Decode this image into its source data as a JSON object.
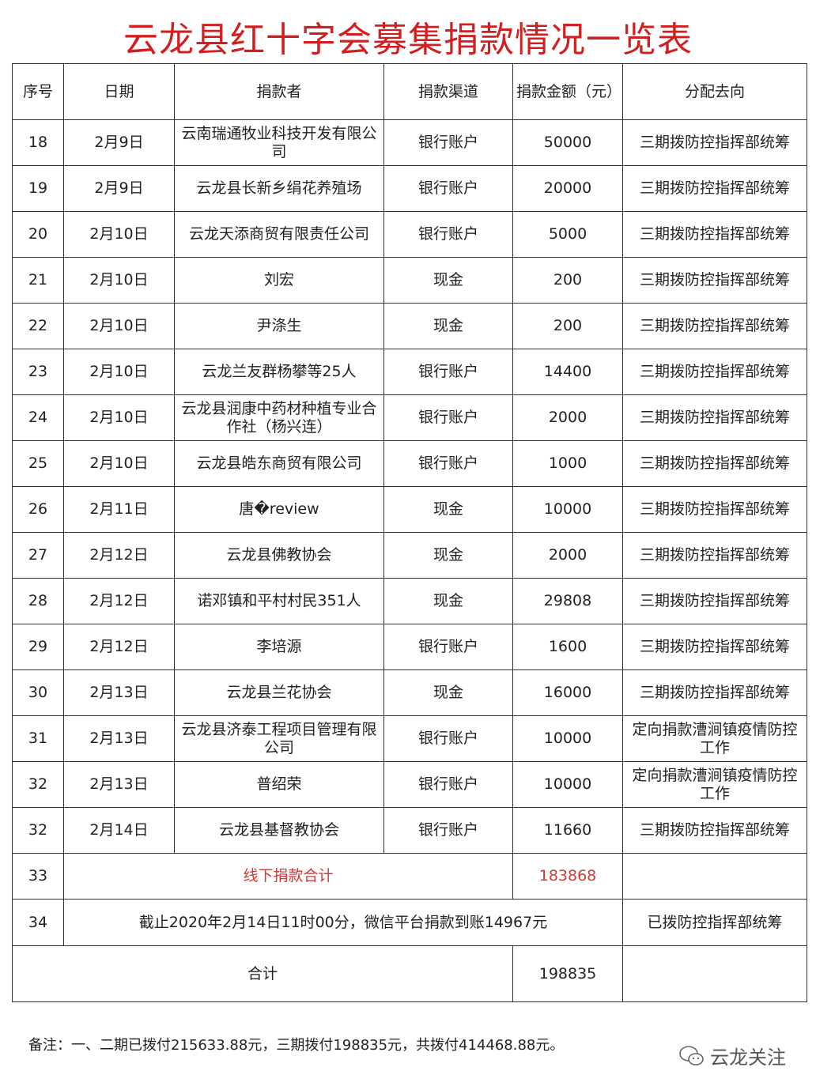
{
  "title": "云龙县红十字会募集捐款情况一览表",
  "headers": [
    "序号",
    "日期",
    "捐款者",
    "捐款渠道",
    "捐款金额（元）",
    "分配去向"
  ],
  "rows": [
    [
      "18",
      "2月9日",
      "云南瑞通牧业科技开发有限公司",
      "银行账户",
      "50000",
      "三期拨防控指挥部统筹"
    ],
    [
      "19",
      "2月9日",
      "云龙县长新乡绢花养殖场",
      "银行账户",
      "20000",
      "三期拨防控指挥部统筹"
    ],
    [
      "20",
      "2月10日",
      "云龙天添商贸有限责任公司",
      "银行账户",
      "5000",
      "三期拨防控指挥部统筹"
    ],
    [
      "21",
      "2月10日",
      "刘宏",
      "现金",
      "200",
      "三期拨防控指挥部统筹"
    ],
    [
      "22",
      "2月10日",
      "尹涤生",
      "现金",
      "200",
      "三期拨防控指挥部统筹"
    ],
    [
      "23",
      "2月10日",
      "云龙兰友群杨攀等25人",
      "银行账户",
      "14400",
      "三期拨防控指挥部统筹"
    ],
    [
      "24",
      "2月10日",
      "云龙县润康中药材种植专业合作社（杨兴连）",
      "银行账户",
      "2000",
      "三期拨防控指挥部统筹"
    ],
    [
      "25",
      "2月10日",
      "云龙县皓东商贸有限公司",
      "银行账户",
      "1000",
      "三期拨防控指挥部统筹"
    ],
    [
      "26",
      "2月11日",
      "唐�review",
      "现金",
      "10000",
      "三期拨防控指挥部统筹"
    ],
    [
      "27",
      "2月12日",
      "云龙县佛教协会",
      "现金",
      "2000",
      "三期拨防控指挥部统筹"
    ],
    [
      "28",
      "2月12日",
      "诺邓镇和平村村民351人",
      "现金",
      "29808",
      "三期拨防控指挥部统筹"
    ],
    [
      "29",
      "2月12日",
      "李培源",
      "银行账户",
      "1600",
      "三期拨防控指挥部统筹"
    ],
    [
      "30",
      "2月13日",
      "云龙县兰花协会",
      "现金",
      "16000",
      "三期拨防控指挥部统筹"
    ],
    [
      "31",
      "2月13日",
      "云龙县济泰工程项目管理有限公司",
      "银行账户",
      "10000",
      "定向捐款漕涧镇疫情防控工作"
    ],
    [
      "32",
      "2月13日",
      "普绍荣",
      "银行账户",
      "10000",
      "定向捐款漕涧镇疫情防控工作"
    ],
    [
      "32",
      "2月14日",
      "云龙县基督教协会",
      "银行账户",
      "11660",
      "三期拨防控指挥部统筹"
    ]
  ],
  "offline_sum": {
    "no": "33",
    "label": "线下捐款合计",
    "amount": "183868"
  },
  "wechat": {
    "no": "34",
    "text": "截止2020年2月14日11时00分，微信平台捐款到账14967元",
    "dest": "已拨防控指挥部统筹"
  },
  "total": {
    "label": "合计",
    "amount": "198835"
  },
  "note": "备注：一、二期已拨付215633.88元，三期拨付198835元，共拨付414468.88元。",
  "watermark": "云龙关注",
  "colors": {
    "title": "#d21e1e",
    "highlight": "#d23838"
  }
}
